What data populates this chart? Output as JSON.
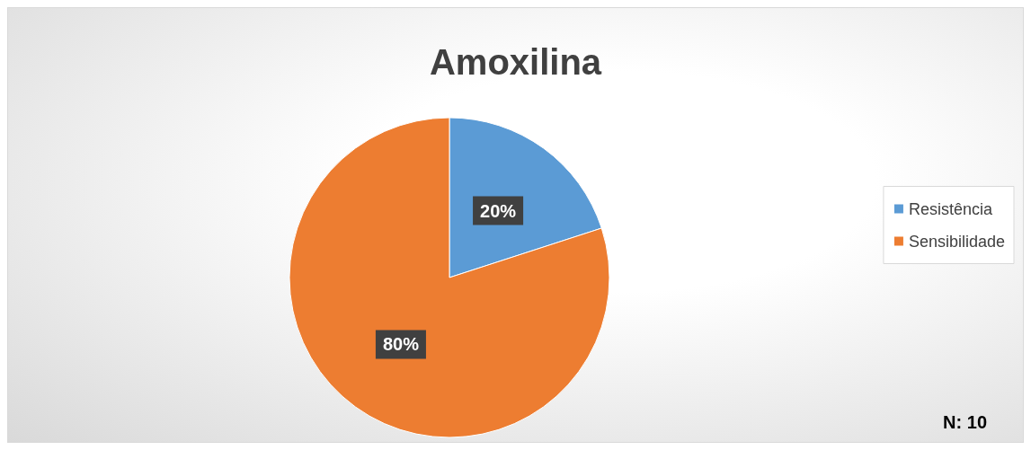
{
  "chart_data": {
    "type": "pie",
    "title": "Amoxilina",
    "categories": [
      "Resistência",
      "Sensibilidade"
    ],
    "values": [
      20,
      80
    ],
    "colors": [
      "#5b9bd5",
      "#ed7d31"
    ],
    "value_labels": [
      "20%",
      "80%"
    ],
    "legend": "right",
    "annotations": [
      "N: 10"
    ]
  }
}
